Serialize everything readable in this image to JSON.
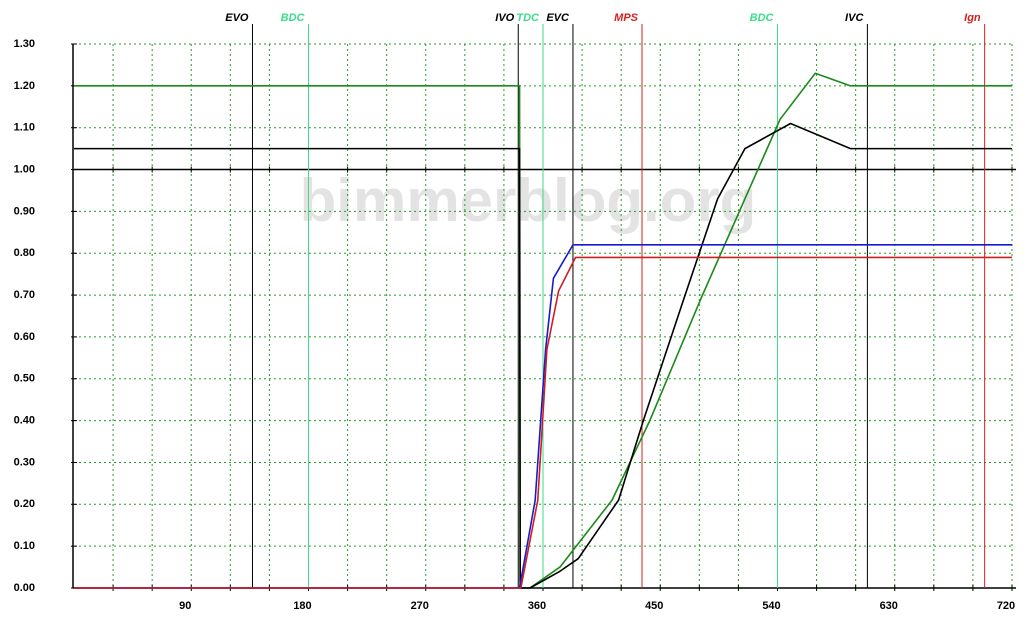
{
  "chart_data": {
    "type": "line",
    "watermark": "bimmerblog.org",
    "xlim": [
      0,
      720
    ],
    "xticks": [
      90,
      180,
      270,
      360,
      450,
      540,
      630,
      720
    ],
    "xgrid": [
      30,
      60,
      90,
      120,
      150,
      180,
      210,
      240,
      270,
      300,
      330,
      360,
      390,
      420,
      450,
      480,
      510,
      540,
      570,
      600,
      630,
      660,
      690,
      720
    ],
    "ylim": [
      0,
      1.3
    ],
    "yticks": [
      {
        "value": 0,
        "label": "0.00"
      },
      {
        "value": 0.1,
        "label": "0.10"
      },
      {
        "value": 0.2,
        "label": "0.20"
      },
      {
        "value": 0.3,
        "label": "0.30"
      },
      {
        "value": 0.4,
        "label": "0.40"
      },
      {
        "value": 0.5,
        "label": "0.50"
      },
      {
        "value": 0.6,
        "label": "0.60"
      },
      {
        "value": 0.7,
        "label": "0.70"
      },
      {
        "value": 0.8,
        "label": "0.80"
      },
      {
        "value": 0.9,
        "label": "0.90"
      },
      {
        "value": 1,
        "label": "1.00"
      },
      {
        "value": 1.1,
        "label": "1.10"
      },
      {
        "value": 1.2,
        "label": "1.20"
      },
      {
        "value": 1.3,
        "label": "1.30"
      }
    ],
    "grid": true,
    "reference_y": 1,
    "markers": [
      {
        "label": "EVO",
        "x": 137,
        "color": "#000000"
      },
      {
        "label": "BDC",
        "x": 180,
        "color": "#3ddc8a"
      },
      {
        "label": "IVO",
        "x": 341,
        "color": "#000000"
      },
      {
        "label": "TDC",
        "x": 360,
        "color": "#3ddc8a"
      },
      {
        "label": "EVC",
        "x": 383,
        "color": "#000000"
      },
      {
        "label": "MPS",
        "x": 436,
        "color": "#d42020"
      },
      {
        "label": "BDC",
        "x": 540,
        "color": "#3ddc8a"
      },
      {
        "label": "IVC",
        "x": 609,
        "color": "#000000"
      },
      {
        "label": "Ign",
        "x": 699,
        "color": "#d42020"
      }
    ],
    "series": [
      {
        "color": "#1a8a1a",
        "x": [
          0,
          342,
          342.5,
          350,
          373,
          413,
          442,
          481,
          515,
          542,
          569,
          596,
          720
        ],
        "values": [
          1.2,
          1.2,
          0,
          0,
          0.05,
          0.21,
          0.4,
          0.69,
          0.93,
          1.12,
          1.23,
          1.2,
          1.2
        ]
      },
      {
        "color": "#000000",
        "x": [
          0,
          342,
          342.5,
          350,
          373,
          387,
          418,
          437,
          468,
          494,
          515,
          550,
          596,
          720
        ],
        "values": [
          1.05,
          1.05,
          0,
          0,
          0.04,
          0.07,
          0.21,
          0.4,
          0.69,
          0.93,
          1.05,
          1.11,
          1.05,
          1.05
        ]
      },
      {
        "color": "#1a1acc",
        "x": [
          0,
          342,
          354,
          362,
          368,
          383,
          720
        ],
        "values": [
          0,
          0,
          0.21,
          0.57,
          0.74,
          0.82,
          0.82
        ]
      },
      {
        "color": "#cc2020",
        "x": [
          0,
          343,
          356,
          363,
          372,
          385,
          720
        ],
        "values": [
          0,
          0,
          0.21,
          0.57,
          0.71,
          0.79,
          0.79
        ]
      }
    ]
  }
}
